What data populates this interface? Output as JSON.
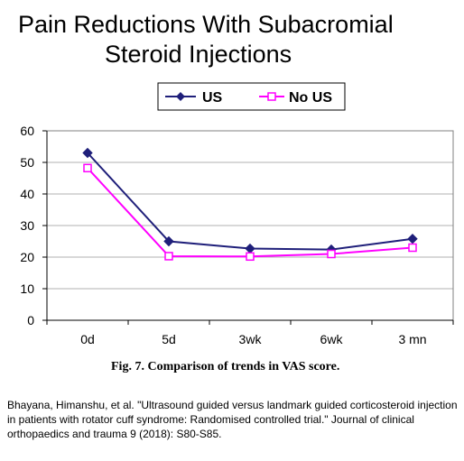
{
  "chart_data": {
    "type": "line",
    "title": "Pain Reductions With Subacromial Steroid Injections",
    "title_lines": [
      "Pain Reductions With Subacromial",
      "Steroid Injections"
    ],
    "categories": [
      "0d",
      "5d",
      "3wk",
      "6wk",
      "3 mn"
    ],
    "series": [
      {
        "name": "US",
        "values": [
          53,
          25,
          22.7,
          22.4,
          25.8
        ],
        "color": "#1f1f7a",
        "marker": "diamond"
      },
      {
        "name": "No US",
        "values": [
          48.2,
          20.3,
          20.2,
          21,
          23
        ],
        "color": "#ff00ff",
        "marker": "square"
      }
    ],
    "ylim": [
      0,
      60
    ],
    "yticks": [
      "0",
      "10",
      "20",
      "30",
      "40",
      "50",
      "60"
    ],
    "xlabel": "",
    "ylabel": "",
    "grid": true,
    "legend_position": "top"
  },
  "caption": {
    "label": "Fig. 7.",
    "text": "Comparison of trends in VAS score."
  },
  "citation": "Bhayana, Himanshu, et al. \"Ultrasound guided versus landmark guided corticosteroid injection in patients with rotator cuff syndrome: Randomised controlled trial.\" Journal of clinical orthopaedics and trauma 9 (2018): S80-S85."
}
